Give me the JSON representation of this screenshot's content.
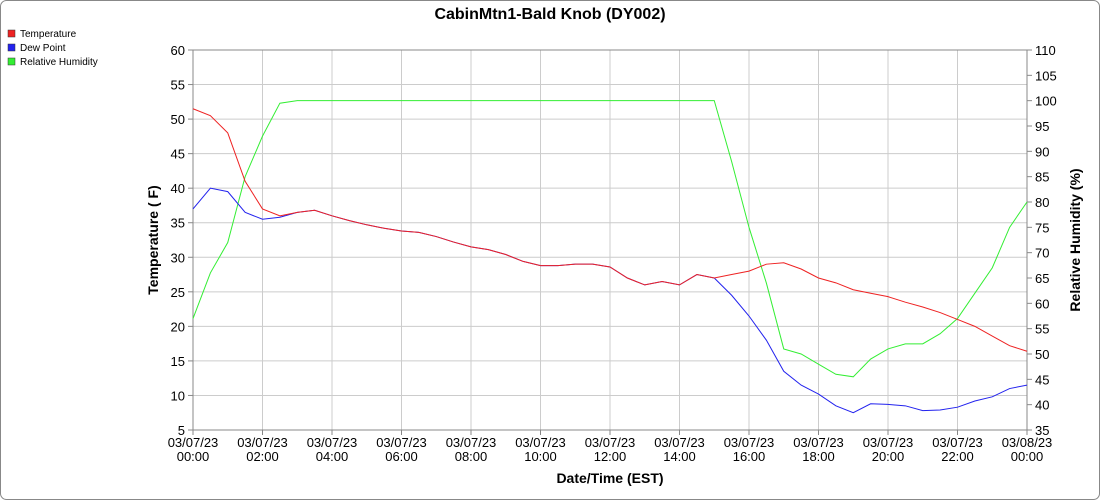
{
  "chart_data": {
    "type": "line",
    "title": "CabinMtn1-Bald Knob (DY002)",
    "x_label": "Date/Time (EST)",
    "y_label": "Temperature ( F)",
    "y2_label": "Relative Humidity (%)",
    "x": [
      "03/07/23 00:00",
      "03/07/23 00:30",
      "03/07/23 01:00",
      "03/07/23 01:30",
      "03/07/23 02:00",
      "03/07/23 02:30",
      "03/07/23 03:00",
      "03/07/23 03:30",
      "03/07/23 04:00",
      "03/07/23 04:30",
      "03/07/23 05:00",
      "03/07/23 05:30",
      "03/07/23 06:00",
      "03/07/23 06:30",
      "03/07/23 07:00",
      "03/07/23 07:30",
      "03/07/23 08:00",
      "03/07/23 08:30",
      "03/07/23 09:00",
      "03/07/23 09:30",
      "03/07/23 10:00",
      "03/07/23 10:30",
      "03/07/23 11:00",
      "03/07/23 11:30",
      "03/07/23 12:00",
      "03/07/23 12:30",
      "03/07/23 13:00",
      "03/07/23 13:30",
      "03/07/23 14:00",
      "03/07/23 14:30",
      "03/07/23 15:00",
      "03/07/23 15:30",
      "03/07/23 16:00",
      "03/07/23 16:30",
      "03/07/23 17:00",
      "03/07/23 17:30",
      "03/07/23 18:00",
      "03/07/23 18:30",
      "03/07/23 19:00",
      "03/07/23 19:30",
      "03/07/23 20:00",
      "03/07/23 20:30",
      "03/07/23 21:00",
      "03/07/23 21:30",
      "03/07/23 22:00",
      "03/07/23 22:30",
      "03/07/23 23:00",
      "03/07/23 23:30",
      "03/08/23 00:00"
    ],
    "series": [
      {
        "name": "Relative Humidity",
        "color": "#33ee33",
        "axis": "y2",
        "values": [
          57,
          66,
          72,
          85,
          93,
          99.5,
          100,
          100,
          100,
          100,
          100,
          100,
          100,
          100,
          100,
          100,
          100,
          100,
          100,
          100,
          100,
          100,
          100,
          100,
          100,
          100,
          100,
          100,
          100,
          100,
          100,
          88,
          75,
          64,
          51,
          50,
          48,
          46,
          45.5,
          49,
          51,
          52,
          52,
          54,
          57,
          62,
          67,
          75,
          80
        ]
      },
      {
        "name": "Dew Point",
        "color": "#2222ee",
        "values": [
          37,
          40,
          39.5,
          36.5,
          35.5,
          35.8,
          36.5,
          36.8,
          36,
          35.3,
          34.7,
          34.2,
          33.8,
          33.6,
          33,
          32.2,
          31.5,
          31.1,
          30.4,
          29.4,
          28.8,
          28.8,
          29,
          29,
          28.6,
          27,
          26,
          26.5,
          26,
          27.5,
          27,
          24.5,
          21.5,
          18,
          13.5,
          11.5,
          10.2,
          8.5,
          7.5,
          8.8,
          8.7,
          8.5,
          7.8,
          7.9,
          8.3,
          9.2,
          9.8,
          11,
          11.5
        ]
      },
      {
        "name": "Temperature",
        "color": "#ee2222",
        "values": [
          51.5,
          50.5,
          48,
          41,
          37,
          36,
          36.5,
          36.8,
          36,
          35.3,
          34.7,
          34.2,
          33.8,
          33.6,
          33,
          32.2,
          31.5,
          31.1,
          30.4,
          29.4,
          28.8,
          28.8,
          29,
          29,
          28.6,
          27,
          26,
          26.5,
          26,
          27.5,
          27,
          27.5,
          28,
          29,
          29.2,
          28.3,
          27,
          26.3,
          25.3,
          24.8,
          24.3,
          23.5,
          22.8,
          22,
          21,
          20,
          18.6,
          17.2,
          16.4
        ]
      }
    ],
    "xlim": [
      "03/07/23 00:00",
      "03/08/23 00:00"
    ],
    "xticks": [
      "03/07/23 00:00",
      "03/07/23 02:00",
      "03/07/23 04:00",
      "03/07/23 06:00",
      "03/07/23 08:00",
      "03/07/23 10:00",
      "03/07/23 12:00",
      "03/07/23 14:00",
      "03/07/23 16:00",
      "03/07/23 18:00",
      "03/07/23 20:00",
      "03/07/23 22:00",
      "03/08/23 00:00"
    ],
    "ylim": [
      5,
      60
    ],
    "yticks": [
      5,
      10,
      15,
      20,
      25,
      30,
      35,
      40,
      45,
      50,
      55,
      60
    ],
    "y2lim": [
      35,
      110
    ],
    "y2ticks": [
      35,
      40,
      45,
      50,
      55,
      60,
      65,
      70,
      75,
      80,
      85,
      90,
      95,
      100,
      105,
      110
    ],
    "grid": true,
    "legend": "top-left"
  }
}
